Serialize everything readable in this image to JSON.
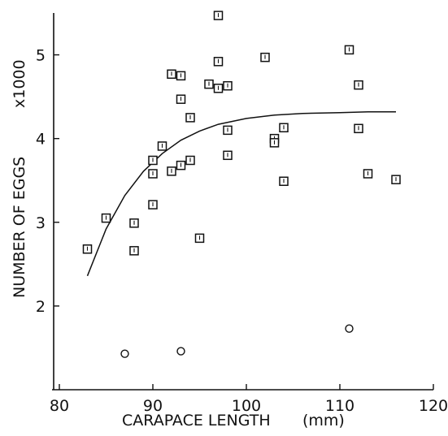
{
  "chart_data": {
    "type": "scatter",
    "xlabel": "CARAPACE LENGTH",
    "xunit": "(mm)",
    "ylabel": "NUMBER OF EGGS",
    "yunit": "x1000",
    "xlim": [
      80,
      120
    ],
    "ylim": [
      1,
      5.5
    ],
    "xticks": [
      "80",
      "90",
      "100",
      "110",
      "120"
    ],
    "yticks": [
      "2",
      "3",
      "4",
      "5"
    ],
    "grid": false,
    "series": [
      {
        "marker": "square",
        "points": [
          [
            83,
            2.68
          ],
          [
            85,
            3.05
          ],
          [
            88,
            2.99
          ],
          [
            88,
            2.66
          ],
          [
            90,
            3.74
          ],
          [
            90,
            3.58
          ],
          [
            90,
            3.21
          ],
          [
            91,
            3.91
          ],
          [
            92,
            4.77
          ],
          [
            92,
            3.61
          ],
          [
            93,
            4.75
          ],
          [
            93,
            4.47
          ],
          [
            93,
            3.68
          ],
          [
            94,
            4.25
          ],
          [
            94,
            3.74
          ],
          [
            95,
            2.81
          ],
          [
            96,
            4.65
          ],
          [
            97,
            5.47
          ],
          [
            97,
            4.92
          ],
          [
            97,
            4.6
          ],
          [
            98,
            4.63
          ],
          [
            98,
            4.1
          ],
          [
            98,
            3.8
          ],
          [
            102,
            4.97
          ],
          [
            103,
            4.0
          ],
          [
            103,
            3.95
          ],
          [
            104,
            4.13
          ],
          [
            104,
            3.49
          ],
          [
            111,
            5.06
          ],
          [
            112,
            4.64
          ],
          [
            112,
            4.12
          ],
          [
            113,
            3.58
          ],
          [
            116,
            3.51
          ]
        ]
      },
      {
        "marker": "circle",
        "points": [
          [
            87,
            1.43
          ],
          [
            93,
            1.46
          ],
          [
            111,
            1.73
          ]
        ]
      },
      {
        "marker": "line",
        "points": [
          [
            83,
            2.36
          ],
          [
            85,
            2.92
          ],
          [
            87,
            3.32
          ],
          [
            89,
            3.61
          ],
          [
            91,
            3.82
          ],
          [
            93,
            3.98
          ],
          [
            95,
            4.09
          ],
          [
            97,
            4.17
          ],
          [
            100,
            4.24
          ],
          [
            103,
            4.28
          ],
          [
            106,
            4.3
          ],
          [
            110,
            4.31
          ],
          [
            113,
            4.32
          ],
          [
            116,
            4.32
          ]
        ]
      }
    ]
  }
}
